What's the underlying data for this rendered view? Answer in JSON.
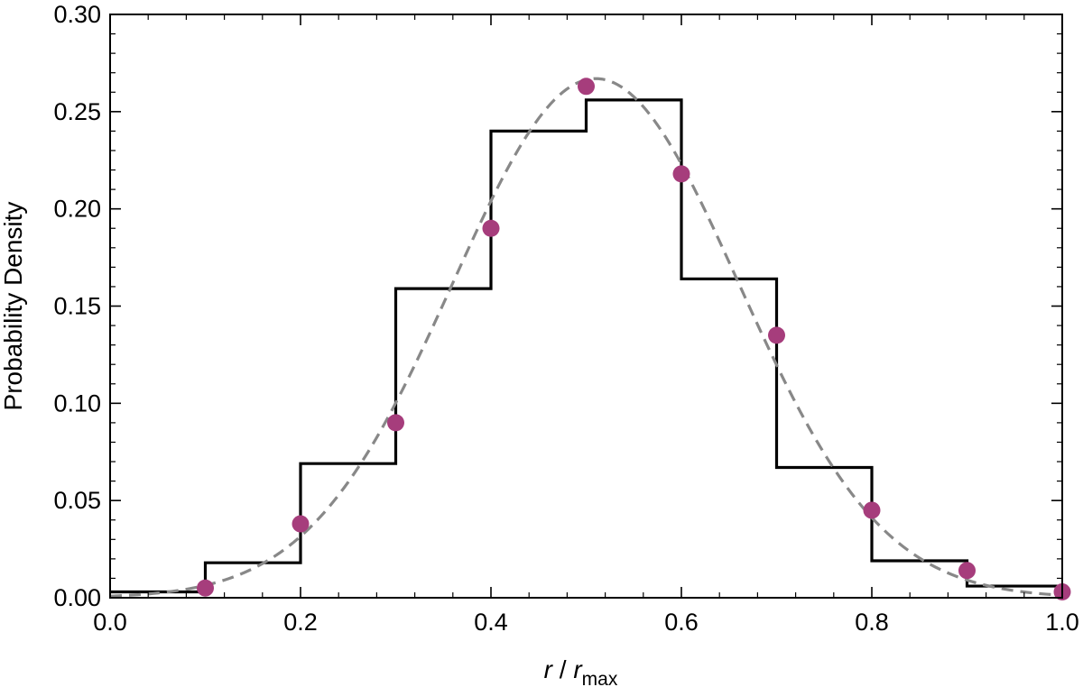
{
  "chart_data": {
    "type": "line",
    "title": "",
    "xlabel": {
      "var": "r",
      "sep": " / ",
      "denom": "r",
      "sub": "max"
    },
    "ylabel": "Probability Density",
    "xlim": [
      0.0,
      1.0
    ],
    "ylim": [
      0.0,
      0.3
    ],
    "grid": false,
    "xticks": [
      "0.0",
      "0.2",
      "0.4",
      "0.6",
      "0.8",
      "1.0"
    ],
    "yticks": [
      "0.00",
      "0.05",
      "0.10",
      "0.15",
      "0.20",
      "0.25",
      "0.30"
    ],
    "histogram": {
      "style": "step",
      "color": "#000000",
      "bin_edges": [
        0.0,
        0.1,
        0.2,
        0.3,
        0.4,
        0.5,
        0.6,
        0.7,
        0.8,
        0.9,
        1.0
      ],
      "values": [
        0.003,
        0.018,
        0.069,
        0.159,
        0.24,
        0.256,
        0.164,
        0.067,
        0.019,
        0.006
      ]
    },
    "points": {
      "style": "scatter",
      "color": "#a63d7c",
      "x": [
        0.1,
        0.2,
        0.3,
        0.4,
        0.5,
        0.6,
        0.7,
        0.8,
        0.9,
        1.0
      ],
      "y": [
        0.005,
        0.038,
        0.09,
        0.19,
        0.263,
        0.218,
        0.135,
        0.045,
        0.014,
        0.003
      ]
    },
    "curve": {
      "style": "dashed",
      "color": "#888888",
      "form": "gaussian",
      "peak": 0.267,
      "mean": 0.51,
      "sd": 0.15
    }
  }
}
